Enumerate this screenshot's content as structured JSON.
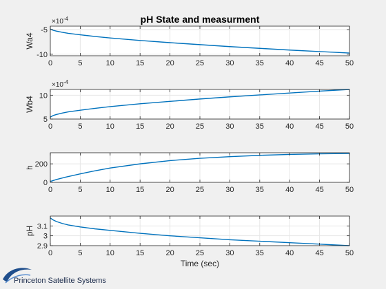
{
  "figure": {
    "title": "pH State and measurment",
    "xlabel": "Time (sec)"
  },
  "logo": {
    "text": "Princeton Satellite Systems"
  },
  "chart_data": [
    {
      "type": "line",
      "ylabel": "Wa4",
      "exponent_label": "×10",
      "exponent_power": "-4",
      "xlim": [
        0,
        50
      ],
      "ylim": [
        -10.3,
        -4.3
      ],
      "x_ticks": [
        0,
        5,
        10,
        15,
        20,
        25,
        30,
        35,
        40,
        45,
        50
      ],
      "y_ticks": [
        -10,
        -5
      ],
      "grid": true,
      "line_color": "#0072bd",
      "series": [
        {
          "x": [
            0,
            0.5,
            1,
            2,
            3,
            5,
            7.5,
            10,
            15,
            20,
            25,
            30,
            35,
            40,
            45,
            50
          ],
          "values": [
            -4.9,
            -5.15,
            -5.3,
            -5.55,
            -5.75,
            -6.05,
            -6.4,
            -6.7,
            -7.2,
            -7.65,
            -8.05,
            -8.45,
            -8.8,
            -9.15,
            -9.45,
            -9.75
          ]
        }
      ]
    },
    {
      "type": "line",
      "ylabel": "Wb4",
      "exponent_label": "×10",
      "exponent_power": "-4",
      "xlim": [
        0,
        50
      ],
      "ylim": [
        5,
        11.2
      ],
      "x_ticks": [
        0,
        5,
        10,
        15,
        20,
        25,
        30,
        35,
        40,
        45,
        50
      ],
      "y_ticks": [
        5,
        10
      ],
      "grid": true,
      "line_color": "#0072bd",
      "series": [
        {
          "x": [
            0,
            0.5,
            1,
            2,
            3,
            5,
            7.5,
            10,
            15,
            20,
            25,
            30,
            35,
            40,
            45,
            50
          ],
          "values": [
            5.4,
            5.75,
            5.95,
            6.25,
            6.5,
            6.85,
            7.25,
            7.6,
            8.2,
            8.7,
            9.2,
            9.65,
            10.05,
            10.45,
            10.85,
            11.2
          ]
        }
      ]
    },
    {
      "type": "line",
      "ylabel": "h",
      "xlim": [
        0,
        50
      ],
      "ylim": [
        0,
        320
      ],
      "x_ticks": [
        0,
        5,
        10,
        15,
        20,
        25,
        30,
        35,
        40,
        45,
        50
      ],
      "y_ticks": [
        0,
        200
      ],
      "grid": true,
      "line_color": "#0072bd",
      "series": [
        {
          "x": [
            0,
            1,
            2.5,
            5,
            7.5,
            10,
            15,
            20,
            25,
            30,
            35,
            40,
            45,
            50
          ],
          "values": [
            10,
            30,
            55,
            92,
            125,
            155,
            200,
            235,
            260,
            278,
            292,
            302,
            308,
            312
          ]
        }
      ]
    },
    {
      "type": "line",
      "ylabel": "pH",
      "xlim": [
        0,
        50
      ],
      "ylim": [
        2.9,
        3.2
      ],
      "x_ticks": [
        0,
        5,
        10,
        15,
        20,
        25,
        30,
        35,
        40,
        45,
        50
      ],
      "y_ticks": [
        2.9,
        3,
        3.1
      ],
      "y_tick_labels": [
        "2.9",
        "3",
        "3.1"
      ],
      "grid": true,
      "line_color": "#0072bd",
      "series": [
        {
          "x": [
            0,
            0.5,
            1,
            2,
            3,
            5,
            7.5,
            10,
            15,
            20,
            25,
            30,
            35,
            40,
            45,
            50
          ],
          "values": [
            3.18,
            3.16,
            3.145,
            3.125,
            3.11,
            3.09,
            3.07,
            3.055,
            3.025,
            3.0,
            2.98,
            2.96,
            2.945,
            2.93,
            2.915,
            2.9
          ]
        }
      ]
    }
  ]
}
